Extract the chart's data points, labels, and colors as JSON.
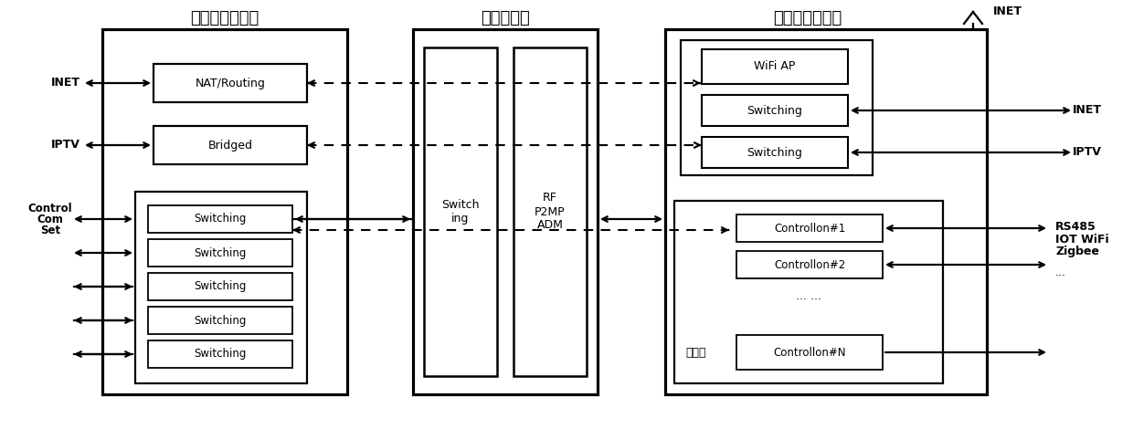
{
  "title_left": "智能多元路由器",
  "title_mid": "智能主控器",
  "title_right": "智能多元集控器",
  "label_inet_top": "INET",
  "label_inet_left": "INET",
  "label_iptv_left": "IPTV",
  "label_control": "Control",
  "label_com": "Com",
  "label_set": "Set",
  "label_inet_right": "INET",
  "label_iptv_right": "IPTV",
  "label_rs485": "RS485",
  "label_iotwifi": "IOT WiFi",
  "label_zigbee": "Zigbee",
  "label_dots": "...",
  "label_nat": "NAT/Routing",
  "label_bridged": "Bridged",
  "label_switching": "Switching",
  "label_wifiap": "WiFi AP",
  "label_switch_mid": "Switch\ning",
  "label_rf": "RF\nP2MP\nADM",
  "label_c1": "Controllon#1",
  "label_c2": "Controllon#2",
  "label_cn": "Controllon#N",
  "label_dotdot": "... ...",
  "label_weiwanguan": "微网关",
  "bg_color": "#ffffff"
}
